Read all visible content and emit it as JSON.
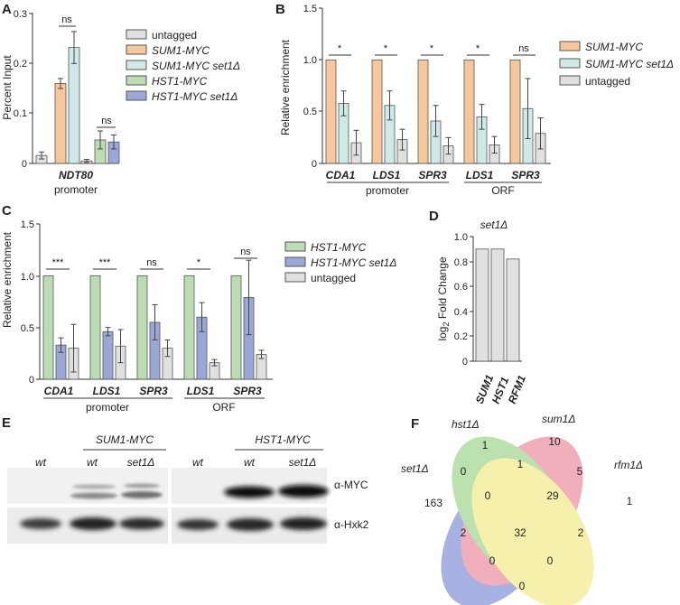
{
  "colors": {
    "untagged": "#e0e0e0",
    "sum1": "#f6c79b",
    "sum1set1": "#cfe9e6",
    "hst1": "#bcdcb4",
    "hst1set1": "#9aa8d8",
    "venn_set1": "#6f7fd0",
    "venn_hst1": "#e97b8f",
    "venn_sum1": "#8fce7a",
    "venn_rfm1": "#efe978"
  },
  "panels": {
    "A": {
      "label": "A",
      "ylabel": "Percent Input",
      "yticks": [
        "0",
        "0.1",
        "0.2",
        "0.3"
      ],
      "category": "NDT80",
      "category_sub": "promoter",
      "sig": [
        "ns",
        "ns"
      ],
      "legend": [
        "untagged",
        "SUM1-MYC",
        "SUM1-MYC set1Δ",
        "HST1-MYC",
        "HST1-MYC set1Δ"
      ]
    },
    "B": {
      "label": "B",
      "ylabel": "Relative enrichment",
      "yticks": [
        "0",
        "0.5",
        "1.0",
        "1.5"
      ],
      "categories": [
        "CDA1",
        "LDS1",
        "SPR3",
        "LDS1",
        "SPR3"
      ],
      "groups": [
        "promoter",
        "ORF"
      ],
      "sig": [
        "*",
        "*",
        "*",
        "*",
        "ns"
      ],
      "legend": [
        "SUM1-MYC",
        "SUM1-MYC set1Δ",
        "untagged"
      ]
    },
    "C": {
      "label": "C",
      "ylabel": "Relative enrichment",
      "yticks": [
        "0",
        "0.5",
        "1.0",
        "1.5"
      ],
      "categories": [
        "CDA1",
        "LDS1",
        "SPR3",
        "LDS1",
        "SPR3"
      ],
      "groups": [
        "promoter",
        "ORF"
      ],
      "sig": [
        "***",
        "***",
        "ns",
        "*",
        "ns"
      ],
      "legend": [
        "HST1-MYC",
        "HST1-MYC set1Δ",
        "untagged"
      ]
    },
    "D": {
      "label": "D",
      "title": "set1Δ",
      "ylabel_pre": "log",
      "ylabel_sub": "2",
      "ylabel_post": " Fold Change",
      "yticks": [
        "0",
        "0.2",
        "0.4",
        "0.6",
        "0.8",
        "1.0"
      ],
      "categories": [
        "SUM1",
        "HST1",
        "RFM1"
      ]
    },
    "E": {
      "label": "E",
      "header_sum1": "SUM1-MYC",
      "header_hst1": "HST1-MYC",
      "lanes_left": [
        "wt",
        "wt",
        "set1Δ"
      ],
      "lanes_right": [
        "wt",
        "wt",
        "set1Δ"
      ],
      "row_labels": [
        "α-MYC",
        "α-Hxk2"
      ]
    },
    "F": {
      "label": "F",
      "set_labels": [
        "set1Δ",
        "hst1Δ",
        "sum1Δ",
        "rfm1Δ"
      ],
      "counts": [
        "1",
        "10",
        "0",
        "1",
        "5",
        "1",
        "163",
        "0",
        "29",
        "2",
        "32",
        "2",
        "0",
        "0",
        "0"
      ]
    }
  },
  "chart_data": [
    {
      "panel": "A",
      "type": "bar",
      "categories": [
        "NDT80 promoter"
      ],
      "series": [
        {
          "name": "untagged",
          "values": [
            0.016
          ],
          "errors": [
            0.007
          ]
        },
        {
          "name": "SUM1-MYC",
          "values": [
            0.16
          ],
          "errors": [
            0.01
          ]
        },
        {
          "name": "SUM1-MYC set1Δ",
          "values": [
            0.232
          ],
          "errors": [
            0.032
          ]
        },
        {
          "name": "HST1-MYC",
          "values": [
            0.047
          ],
          "errors": [
            0.018
          ]
        },
        {
          "name": "HST1-MYC set1Δ",
          "values": [
            0.043
          ],
          "errors": [
            0.014
          ]
        }
      ],
      "extra_bar": {
        "value": 0.005,
        "error": 0.003
      },
      "ylabel": "Percent Input",
      "ylim": [
        0,
        0.3
      ]
    },
    {
      "panel": "B",
      "type": "bar",
      "categories": [
        "CDA1",
        "LDS1",
        "SPR3",
        "LDS1",
        "SPR3"
      ],
      "series": [
        {
          "name": "SUM1-MYC",
          "values": [
            1.0,
            1.0,
            1.0,
            1.0,
            1.0
          ],
          "errors": [
            0,
            0,
            0,
            0,
            0
          ]
        },
        {
          "name": "SUM1-MYC set1Δ",
          "values": [
            0.58,
            0.56,
            0.41,
            0.45,
            0.53
          ],
          "errors": [
            0.12,
            0.14,
            0.15,
            0.12,
            0.29
          ]
        },
        {
          "name": "untagged",
          "values": [
            0.2,
            0.23,
            0.17,
            0.18,
            0.29
          ],
          "errors": [
            0.12,
            0.1,
            0.08,
            0.08,
            0.15
          ]
        }
      ],
      "ylabel": "Relative enrichment",
      "ylim": [
        0,
        1.5
      ]
    },
    {
      "panel": "C",
      "type": "bar",
      "categories": [
        "CDA1",
        "LDS1",
        "SPR3",
        "LDS1",
        "SPR3"
      ],
      "series": [
        {
          "name": "HST1-MYC",
          "values": [
            1.0,
            1.0,
            1.0,
            1.0,
            1.0
          ],
          "errors": [
            0,
            0,
            0,
            0,
            0
          ]
        },
        {
          "name": "HST1-MYC set1Δ",
          "values": [
            0.33,
            0.46,
            0.55,
            0.6,
            0.79
          ],
          "errors": [
            0.07,
            0.04,
            0.17,
            0.14,
            0.36
          ]
        },
        {
          "name": "untagged",
          "values": [
            0.3,
            0.32,
            0.3,
            0.16,
            0.24
          ],
          "errors": [
            0.23,
            0.16,
            0.08,
            0.03,
            0.04
          ]
        }
      ],
      "ylabel": "Relative enrichment",
      "ylim": [
        0,
        1.5
      ]
    },
    {
      "panel": "D",
      "type": "bar",
      "title": "set1Δ",
      "categories": [
        "SUM1",
        "HST1",
        "RFM1"
      ],
      "values": [
        0.9,
        0.9,
        0.82
      ],
      "ylabel": "log2 Fold Change",
      "ylim": [
        0,
        1.0
      ]
    }
  ]
}
